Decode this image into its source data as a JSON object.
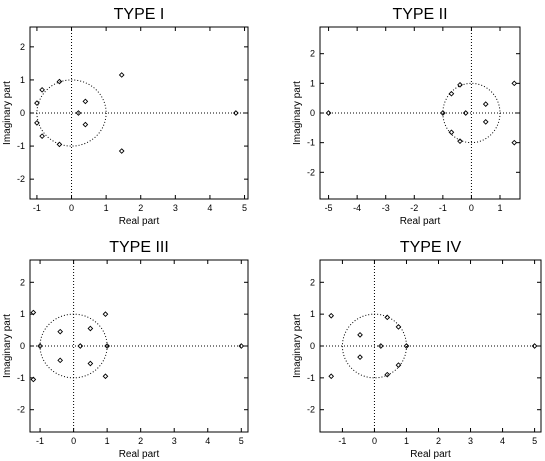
{
  "chart_data": [
    {
      "type": "scatter",
      "title": "TYPE I",
      "xlabel": "Real part",
      "ylabel": "Imaginary part",
      "xlim": [
        -1.2,
        5.1
      ],
      "ylim": [
        -2.6,
        2.6
      ],
      "xticks": [
        -1,
        0,
        1,
        2,
        3,
        4,
        5
      ],
      "yticks": [
        -2,
        -1,
        0,
        1,
        2
      ],
      "unit_circle": true,
      "zero_lines": true,
      "points": [
        [
          -0.35,
          0.95
        ],
        [
          -0.35,
          -0.95
        ],
        [
          -0.85,
          0.7
        ],
        [
          -0.85,
          -0.7
        ],
        [
          -1.0,
          0.3
        ],
        [
          -1.0,
          -0.3
        ],
        [
          0.2,
          0.0
        ],
        [
          0.4,
          0.35
        ],
        [
          0.4,
          -0.35
        ],
        [
          1.45,
          1.15
        ],
        [
          1.45,
          -1.15
        ],
        [
          4.75,
          0.0
        ]
      ]
    },
    {
      "type": "scatter",
      "title": "TYPE II",
      "xlabel": "Real part",
      "ylabel": "Imaginary part",
      "xlim": [
        -5.3,
        1.7
      ],
      "ylim": [
        -2.9,
        2.9
      ],
      "xticks": [
        -5,
        -4,
        -3,
        -2,
        -1,
        0,
        1
      ],
      "yticks": [
        -2,
        -1,
        0,
        1,
        2
      ],
      "unit_circle": true,
      "zero_lines": true,
      "points": [
        [
          -5.0,
          0.0
        ],
        [
          -1.0,
          0.0
        ],
        [
          -0.7,
          0.65
        ],
        [
          -0.7,
          -0.65
        ],
        [
          -0.4,
          0.95
        ],
        [
          -0.4,
          -0.95
        ],
        [
          -0.2,
          0.0
        ],
        [
          0.5,
          0.3
        ],
        [
          0.5,
          -0.3
        ],
        [
          1.5,
          1.0
        ],
        [
          1.5,
          -1.0
        ]
      ]
    },
    {
      "type": "scatter",
      "title": "TYPE III",
      "xlabel": "Real part",
      "ylabel": "Imaginary part",
      "xlim": [
        -1.3,
        5.2
      ],
      "ylim": [
        -2.7,
        2.7
      ],
      "xticks": [
        -1,
        0,
        1,
        2,
        3,
        4,
        5
      ],
      "yticks": [
        -2,
        -1,
        0,
        1,
        2
      ],
      "unit_circle": true,
      "zero_lines": true,
      "points": [
        [
          -1.2,
          1.05
        ],
        [
          -1.2,
          -1.05
        ],
        [
          -1.0,
          0.0
        ],
        [
          -0.4,
          0.45
        ],
        [
          -0.4,
          -0.45
        ],
        [
          0.2,
          0.0
        ],
        [
          0.5,
          0.55
        ],
        [
          0.5,
          -0.55
        ],
        [
          0.95,
          1.0
        ],
        [
          0.95,
          -0.95
        ],
        [
          1.0,
          0.0
        ],
        [
          5.0,
          0.0
        ]
      ]
    },
    {
      "type": "scatter",
      "title": "TYPE IV",
      "xlabel": "Real part",
      "ylabel": "Imaginary part",
      "xlim": [
        -1.7,
        5.2
      ],
      "ylim": [
        -2.7,
        2.7
      ],
      "xticks": [
        -1,
        0,
        1,
        2,
        3,
        4,
        5
      ],
      "yticks": [
        -2,
        -1,
        0,
        1,
        2
      ],
      "unit_circle": true,
      "zero_lines": true,
      "points": [
        [
          -1.35,
          0.95
        ],
        [
          -1.35,
          -0.95
        ],
        [
          -0.45,
          0.35
        ],
        [
          -0.45,
          -0.35
        ],
        [
          0.2,
          0.0
        ],
        [
          0.4,
          0.9
        ],
        [
          0.4,
          -0.9
        ],
        [
          0.75,
          0.6
        ],
        [
          0.75,
          -0.6
        ],
        [
          1.0,
          0.0
        ],
        [
          5.0,
          0.0
        ]
      ]
    }
  ]
}
